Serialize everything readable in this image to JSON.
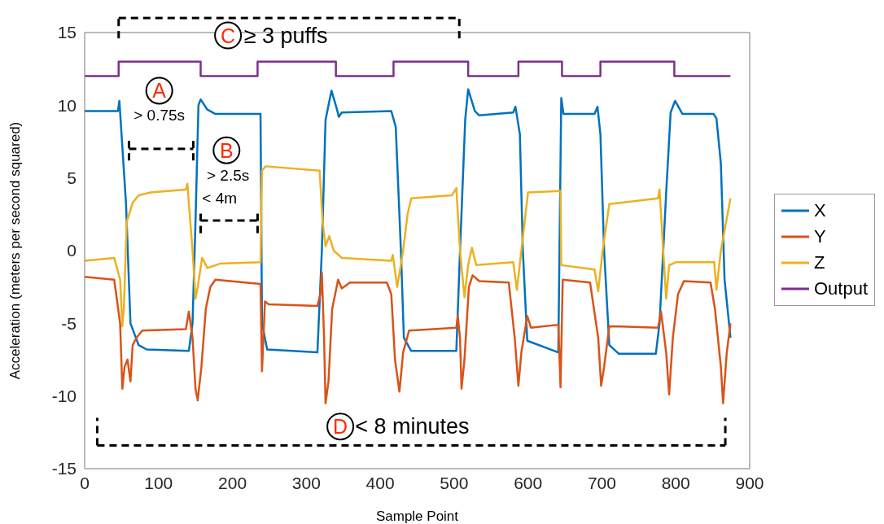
{
  "chart_data": {
    "type": "line",
    "xlabel": "Sample Point",
    "ylabel": "Acceleration (meters per second squared)",
    "xlim": [
      0,
      900
    ],
    "xticks": [
      0,
      100,
      200,
      300,
      400,
      500,
      600,
      700,
      800,
      900
    ],
    "ylim": [
      -15,
      15
    ],
    "yticks": [
      -15,
      -10,
      -5,
      0,
      5,
      10,
      15
    ],
    "legend": "right",
    "annotations": [
      "C",
      "≥ 3 puffs",
      "A",
      "> 0.75s",
      "B",
      "> 2.5s",
      "< 4m",
      "D",
      "< 8 minutes"
    ],
    "series": [
      {
        "name": "X",
        "color": "#0072bd",
        "x": [
          0,
          45,
          47,
          56,
          62,
          73,
          84,
          141,
          146,
          150,
          154,
          157,
          166,
          177,
          238,
          240,
          247,
          315,
          321,
          326,
          334,
          341,
          344,
          348,
          415,
          421,
          428,
          432,
          442,
          503,
          508,
          515,
          519,
          528,
          534,
          580,
          583,
          589,
          593,
          599,
          641,
          645,
          648,
          690,
          694,
          698,
          703,
          710,
          723,
          773,
          778,
          787,
          793,
          799,
          809,
          851,
          855,
          861,
          866,
          874
        ],
        "values": [
          9.6,
          9.6,
          10.3,
          3.2,
          -5,
          -6.5,
          -6.8,
          -6.9,
          -5,
          2,
          10,
          10.4,
          9.7,
          9.4,
          9.4,
          -5,
          -6.8,
          -7,
          0,
          9,
          11,
          9.8,
          9.2,
          9.5,
          9.6,
          8.5,
          0,
          -6,
          -6.9,
          -6.9,
          0,
          9,
          11.1,
          9.6,
          9.3,
          9.5,
          9.9,
          8,
          0,
          -6.2,
          -7,
          10.5,
          9.4,
          9.4,
          9.9,
          8,
          0,
          -6.5,
          -7.1,
          -7.1,
          -5,
          4,
          9.5,
          10.3,
          9.4,
          9.4,
          9.1,
          6,
          -2,
          -6
        ]
      },
      {
        "name": "Y",
        "color": "#d95319",
        "x": [
          0,
          40,
          48,
          51,
          54,
          58,
          62,
          65,
          70,
          78,
          137,
          141,
          146,
          150,
          153,
          158,
          164,
          170,
          177,
          238,
          240,
          244,
          249,
          315,
          319,
          321,
          324,
          326,
          330,
          335,
          343,
          348,
          359,
          409,
          415,
          420,
          426,
          431,
          439,
          503,
          505,
          508,
          510,
          514,
          520,
          525,
          534,
          574,
          582,
          587,
          591,
          599,
          604,
          641,
          644,
          647,
          684,
          695,
          699,
          703,
          710,
          776,
          780,
          787,
          791,
          796,
          803,
          811,
          847,
          853,
          861,
          864,
          869,
          874
        ],
        "values": [
          -1.8,
          -2,
          -5,
          -9.5,
          -8,
          -7.5,
          -9,
          -6.5,
          -6,
          -5.5,
          -5.4,
          -4.2,
          -6,
          -9.5,
          -10.3,
          -8,
          -4,
          -2.5,
          -2,
          -2.3,
          -8.3,
          -3.5,
          -3.7,
          -3.8,
          -3,
          -1.5,
          -6,
          -10.5,
          -9,
          -4,
          -2,
          -2.6,
          -2.2,
          -2.2,
          -3,
          -7.5,
          -9.7,
          -7,
          -5.5,
          -5.3,
          -4.5,
          -6,
          -9.5,
          -7.5,
          -2.5,
          -1.7,
          -2.1,
          -2.2,
          -6,
          -9.3,
          -7,
          -4.5,
          -5.3,
          -5.1,
          -9.4,
          -2,
          -2.2,
          -6,
          -9.3,
          -8,
          -5.2,
          -5.3,
          -4.2,
          -7,
          -9.9,
          -6,
          -3,
          -2.1,
          -2.2,
          -4,
          -8,
          -10.5,
          -7,
          -5
        ]
      },
      {
        "name": "Z",
        "color": "#edb120",
        "x": [
          0,
          40,
          48,
          51,
          53,
          57,
          65,
          73,
          89,
          137,
          139,
          146,
          150,
          153,
          159,
          166,
          183,
          238,
          240,
          245,
          318,
          322,
          326,
          331,
          337,
          348,
          415,
          417,
          423,
          431,
          437,
          442,
          497,
          503,
          508,
          514,
          519,
          524,
          530,
          580,
          585,
          591,
          600,
          644,
          645,
          690,
          695,
          701,
          710,
          776,
          778,
          783,
          787,
          791,
          800,
          852,
          855,
          861,
          874
        ],
        "values": [
          -0.7,
          -0.5,
          -2,
          -5.2,
          -4,
          2,
          3.3,
          3.8,
          4,
          4.2,
          4.6,
          0,
          -3.3,
          -2.5,
          -0.5,
          -1.2,
          -0.9,
          -0.8,
          5.5,
          5.8,
          5.5,
          2,
          0.3,
          1,
          0,
          -0.5,
          -0.7,
          -0.3,
          -2.5,
          0,
          2.5,
          3.6,
          3.8,
          4.3,
          0,
          -3.2,
          -1,
          0.2,
          -1,
          -0.8,
          -2.7,
          0,
          4,
          4.1,
          -1,
          -1.3,
          -2.8,
          0,
          3.2,
          3.6,
          4.2,
          0,
          -3.3,
          -1,
          -0.8,
          -0.8,
          -2.7,
          0,
          3.6
        ]
      },
      {
        "name": "Output",
        "color": "#7e2f8e",
        "type": "step",
        "x": [
          0,
          46,
          157,
          234,
          340,
          418,
          519,
          587,
          646,
          698,
          798,
          874
        ],
        "values": [
          12,
          13,
          12,
          13,
          12,
          13,
          12,
          13,
          12,
          13,
          12,
          12
        ]
      }
    ]
  }
}
